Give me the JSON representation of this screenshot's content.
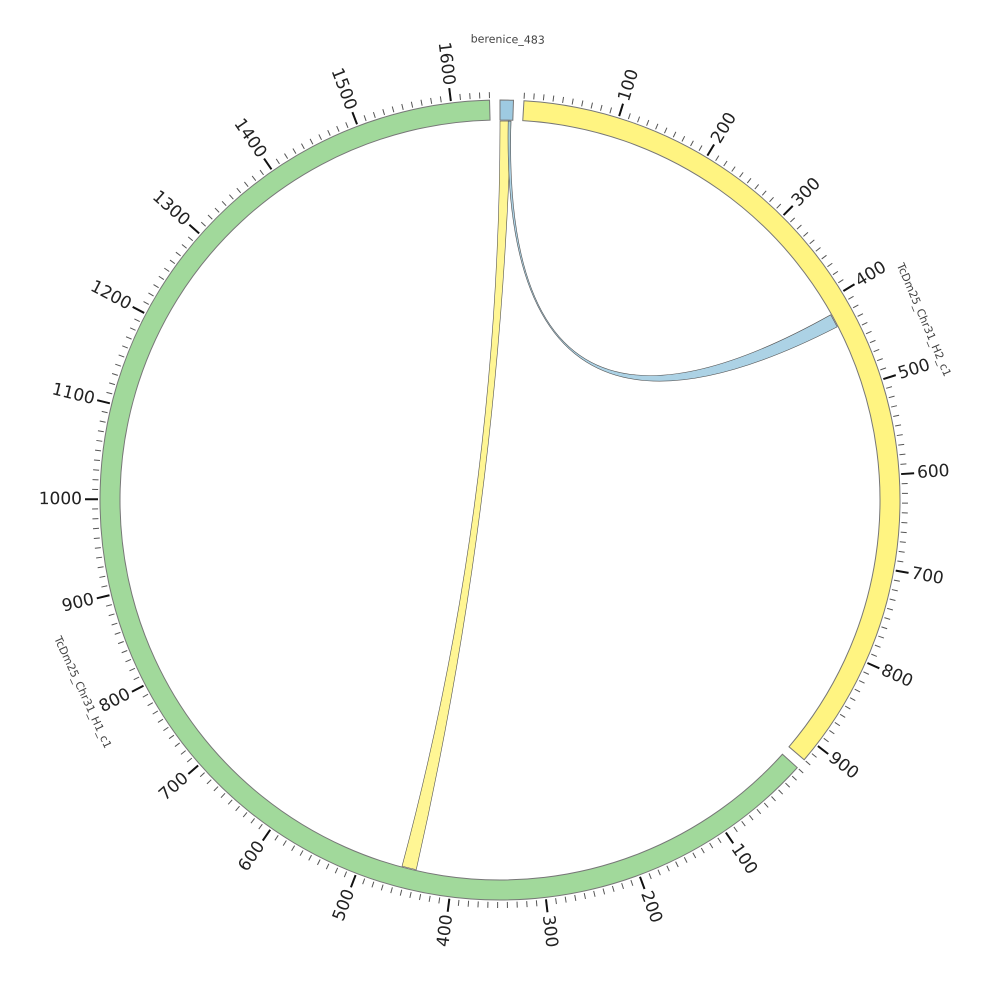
{
  "chart_data": {
    "type": "circos",
    "segments": [
      {
        "name": "berenice_483",
        "length": 14,
        "color": "#9ecae1",
        "ticks": []
      },
      {
        "name": "TcDm25_Chr31_H2_c1",
        "length": 920,
        "color": "#fff481",
        "ticks": [
          100,
          200,
          300,
          400,
          500,
          600,
          700,
          800,
          900
        ]
      },
      {
        "name": "TcDm25_Chr31_H1_c1",
        "length": 1640,
        "color": "#a1d99b",
        "ticks": [
          100,
          200,
          300,
          400,
          500,
          600,
          700,
          800,
          900,
          1000,
          1100,
          1200,
          1300,
          1400,
          1500,
          1600
        ]
      }
    ],
    "minor_tick_step": 10,
    "links": [
      {
        "source": 0,
        "source_range": [
          0,
          12
        ],
        "target": 2,
        "target_range": [
          440,
          456
        ],
        "color": "#fff481"
      },
      {
        "source": 0,
        "source_range": [
          9,
          12
        ],
        "target": 1,
        "target_range": [
          415,
          430
        ],
        "color": "#9ecae1"
      }
    ]
  }
}
